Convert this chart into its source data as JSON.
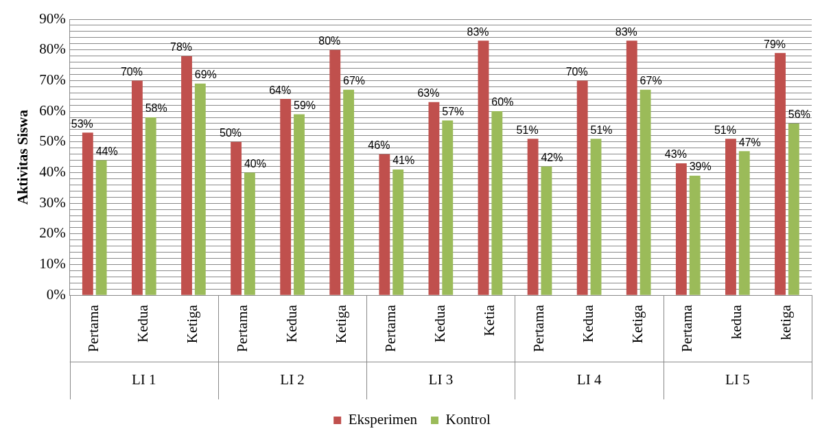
{
  "chart_data": {
    "type": "bar",
    "ylabel": "Aktivitas Siswa",
    "categories": [
      "Pertama",
      "Kedua",
      "Ketiga",
      "Pertama",
      "Kedua",
      "Ketiga",
      "Pertama",
      "Kedua",
      "Ketia",
      "Pertama",
      "Kedua",
      "Ketiga",
      "Pertama",
      "kedua",
      "ketiga"
    ],
    "annotations": [
      "LI 1",
      "LI 2",
      "LI 3",
      "LI 4",
      "LI 5"
    ],
    "series": [
      {
        "name": "Eksperimen",
        "color": "#c0504d",
        "values": [
          53,
          70,
          78,
          50,
          64,
          80,
          46,
          63,
          83,
          51,
          70,
          83,
          43,
          51,
          79
        ],
        "value_labels": [
          "53%",
          "70%",
          "78%",
          "50%",
          "64%",
          "80%",
          "46%",
          "63%",
          "83%",
          "51%",
          "70%",
          "83%",
          "43%",
          "51%",
          "79%"
        ]
      },
      {
        "name": "Kontrol",
        "color": "#9bbb59",
        "values": [
          44,
          58,
          69,
          40,
          59,
          67,
          41,
          57,
          60,
          42,
          51,
          67,
          39,
          47,
          56
        ],
        "value_labels": [
          "44%",
          "58%",
          "69%",
          "40%",
          "59%",
          "67%",
          "41%",
          "57%",
          "60%",
          "42%",
          "51%",
          "67%",
          "39%",
          "47%",
          "56%"
        ]
      }
    ],
    "ylim": [
      0,
      90
    ],
    "yticks": [
      {
        "value": 0,
        "label": "0%"
      },
      {
        "value": 2,
        "label": null
      },
      {
        "value": 4,
        "label": null
      },
      {
        "value": 6,
        "label": null
      },
      {
        "value": 8,
        "label": null
      },
      {
        "value": 10,
        "label": "10%"
      },
      {
        "value": 12,
        "label": null
      },
      {
        "value": 14,
        "label": null
      },
      {
        "value": 16,
        "label": null
      },
      {
        "value": 18,
        "label": null
      },
      {
        "value": 20,
        "label": "20%"
      },
      {
        "value": 22,
        "label": null
      },
      {
        "value": 24,
        "label": null
      },
      {
        "value": 26,
        "label": null
      },
      {
        "value": 28,
        "label": null
      },
      {
        "value": 30,
        "label": "30%"
      },
      {
        "value": 32,
        "label": null
      },
      {
        "value": 34,
        "label": null
      },
      {
        "value": 36,
        "label": null
      },
      {
        "value": 38,
        "label": null
      },
      {
        "value": 40,
        "label": "40%"
      },
      {
        "value": 42,
        "label": null
      },
      {
        "value": 44,
        "label": null
      },
      {
        "value": 46,
        "label": null
      },
      {
        "value": 48,
        "label": null
      },
      {
        "value": 50,
        "label": "50%"
      },
      {
        "value": 52,
        "label": null
      },
      {
        "value": 54,
        "label": null
      },
      {
        "value": 56,
        "label": null
      },
      {
        "value": 58,
        "label": null
      },
      {
        "value": 60,
        "label": "60%"
      },
      {
        "value": 62,
        "label": null
      },
      {
        "value": 64,
        "label": null
      },
      {
        "value": 66,
        "label": null
      },
      {
        "value": 68,
        "label": null
      },
      {
        "value": 70,
        "label": "70%"
      },
      {
        "value": 72,
        "label": null
      },
      {
        "value": 74,
        "label": null
      },
      {
        "value": 76,
        "label": null
      },
      {
        "value": 78,
        "label": null
      },
      {
        "value": 80,
        "label": "80%"
      },
      {
        "value": 82,
        "label": null
      },
      {
        "value": 84,
        "label": null
      },
      {
        "value": 86,
        "label": null
      },
      {
        "value": 88,
        "label": null
      },
      {
        "value": 90,
        "label": "90%"
      }
    ],
    "grid": "y",
    "legend": "bottom"
  }
}
